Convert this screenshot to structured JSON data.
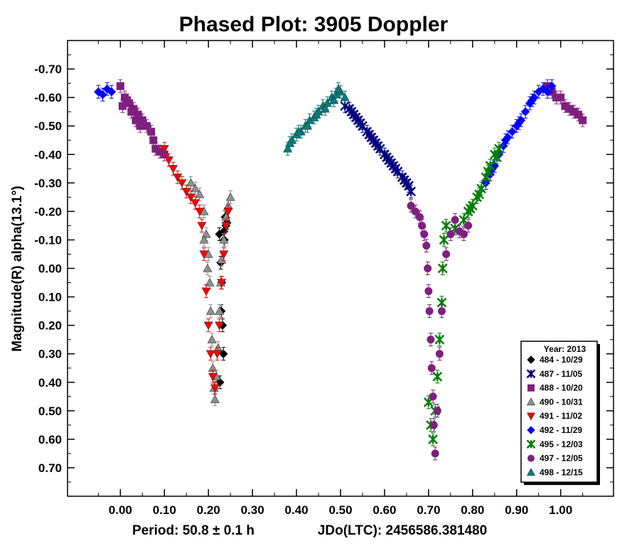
{
  "chart_data": {
    "type": "scatter",
    "title": "Phased Plot: 3905 Doppler",
    "xlabel": "Period: 50.8 ± 0.1 h",
    "xlabel2": "JDo(LTC): 2456586.381480",
    "ylabel": "Magnitude(R) alpha(13.1°)",
    "xlim": [
      -0.12,
      1.12
    ],
    "ylim": [
      0.8,
      -0.8
    ],
    "y_inverted": true,
    "x_ticks": [
      "0.00",
      "0.10",
      "0.20",
      "0.30",
      "0.40",
      "0.50",
      "0.60",
      "0.70",
      "0.80",
      "0.90",
      "1.00"
    ],
    "y_ticks": [
      "-0.70",
      "-0.60",
      "-0.50",
      "-0.40",
      "-0.30",
      "-0.20",
      "-0.10",
      "0.00",
      "0.10",
      "0.20",
      "0.30",
      "0.40",
      "0.50",
      "0.60",
      "0.70"
    ],
    "grid": false,
    "legend_placement": "bottom-right",
    "legend_title": "Year: 2013",
    "series": [
      {
        "name": "484 - 10/29",
        "color": "#000000",
        "marker": "diamond",
        "points": [
          [
            0.225,
            -0.12
          ],
          [
            0.228,
            -0.02
          ],
          [
            0.23,
            0.05
          ],
          [
            0.232,
            0.2
          ],
          [
            0.234,
            0.3
          ],
          [
            0.226,
            0.4
          ],
          [
            0.236,
            -0.1
          ],
          [
            0.238,
            -0.18
          ],
          [
            0.24,
            -0.15
          ],
          [
            0.242,
            -0.16
          ],
          [
            0.235,
            -0.13
          ],
          [
            0.229,
            0.15
          ]
        ]
      },
      {
        "name": "487 - 11/05",
        "color": "#00007f",
        "marker": "asterisk",
        "points": [
          [
            0.51,
            -0.57
          ],
          [
            0.52,
            -0.56
          ],
          [
            0.53,
            -0.54
          ],
          [
            0.54,
            -0.52
          ],
          [
            0.55,
            -0.5
          ],
          [
            0.56,
            -0.48
          ],
          [
            0.57,
            -0.46
          ],
          [
            0.58,
            -0.44
          ],
          [
            0.59,
            -0.42
          ],
          [
            0.6,
            -0.4
          ],
          [
            0.61,
            -0.38
          ],
          [
            0.62,
            -0.36
          ],
          [
            0.63,
            -0.34
          ],
          [
            0.64,
            -0.32
          ],
          [
            0.65,
            -0.3
          ],
          [
            0.66,
            -0.27
          ],
          [
            0.525,
            -0.55
          ],
          [
            0.545,
            -0.51
          ],
          [
            0.565,
            -0.47
          ],
          [
            0.585,
            -0.43
          ],
          [
            0.605,
            -0.39
          ],
          [
            0.625,
            -0.35
          ],
          [
            0.645,
            -0.31
          ],
          [
            0.535,
            -0.53
          ],
          [
            0.575,
            -0.45
          ],
          [
            0.615,
            -0.37
          ],
          [
            0.655,
            -0.29
          ]
        ]
      },
      {
        "name": "488 - 10/20",
        "color": "#7f1f7f",
        "marker": "square",
        "points": [
          [
            0.0,
            -0.64
          ],
          [
            0.01,
            -0.6
          ],
          [
            0.02,
            -0.58
          ],
          [
            0.03,
            -0.56
          ],
          [
            0.04,
            -0.54
          ],
          [
            0.05,
            -0.52
          ],
          [
            0.06,
            -0.5
          ],
          [
            0.07,
            -0.48
          ],
          [
            0.075,
            -0.45
          ],
          [
            0.08,
            -0.42
          ],
          [
            0.09,
            -0.41
          ],
          [
            0.1,
            -0.4
          ],
          [
            0.97,
            -0.64
          ],
          [
            0.98,
            -0.62
          ],
          [
            0.99,
            -0.6
          ],
          [
            1.0,
            -0.6
          ],
          [
            1.01,
            -0.57
          ],
          [
            1.02,
            -0.56
          ],
          [
            1.03,
            -0.55
          ],
          [
            1.04,
            -0.54
          ],
          [
            1.05,
            -0.52
          ],
          [
            0.005,
            -0.57
          ],
          [
            0.015,
            -0.59
          ],
          [
            0.025,
            -0.55
          ],
          [
            0.035,
            -0.52
          ],
          [
            0.045,
            -0.5
          ]
        ]
      },
      {
        "name": "490 - 10/31",
        "color": "#8f8f8f",
        "marker": "triangle",
        "points": [
          [
            0.16,
            -0.3
          ],
          [
            0.17,
            -0.28
          ],
          [
            0.18,
            -0.26
          ],
          [
            0.19,
            -0.2
          ],
          [
            0.195,
            -0.12
          ],
          [
            0.2,
            -0.05
          ],
          [
            0.203,
            0.05
          ],
          [
            0.205,
            0.15
          ],
          [
            0.208,
            0.25
          ],
          [
            0.21,
            0.35
          ],
          [
            0.213,
            0.42
          ],
          [
            0.215,
            0.46
          ],
          [
            0.218,
            0.38
          ],
          [
            0.222,
            0.28
          ],
          [
            0.225,
            0.15
          ],
          [
            0.228,
            0.05
          ],
          [
            0.23,
            -0.03
          ],
          [
            0.235,
            -0.1
          ],
          [
            0.24,
            -0.18
          ],
          [
            0.245,
            -0.22
          ],
          [
            0.25,
            -0.25
          ],
          [
            0.19,
            -0.1
          ],
          [
            0.198,
            0.0
          ]
        ]
      },
      {
        "name": "491 - 11/02",
        "color": "#ff0000",
        "marker": "triangle-down",
        "points": [
          [
            0.1,
            -0.42
          ],
          [
            0.11,
            -0.38
          ],
          [
            0.12,
            -0.35
          ],
          [
            0.13,
            -0.32
          ],
          [
            0.14,
            -0.3
          ],
          [
            0.15,
            -0.27
          ],
          [
            0.16,
            -0.25
          ],
          [
            0.17,
            -0.23
          ],
          [
            0.18,
            -0.2
          ],
          [
            0.185,
            -0.15
          ],
          [
            0.19,
            -0.05
          ],
          [
            0.195,
            0.08
          ],
          [
            0.2,
            0.2
          ],
          [
            0.205,
            0.3
          ],
          [
            0.21,
            0.38
          ],
          [
            0.215,
            0.42
          ],
          [
            0.22,
            0.3
          ],
          [
            0.225,
            0.2
          ],
          [
            0.23,
            0.05
          ],
          [
            0.235,
            -0.05
          ],
          [
            0.24,
            -0.15
          ],
          [
            0.245,
            -0.2
          ]
        ]
      },
      {
        "name": "492 - 11/29",
        "color": "#0000ff",
        "marker": "diamond",
        "points": [
          [
            -0.05,
            -0.62
          ],
          [
            -0.04,
            -0.61
          ],
          [
            -0.03,
            -0.63
          ],
          [
            -0.02,
            -0.62
          ],
          [
            0.83,
            -0.3
          ],
          [
            0.84,
            -0.33
          ],
          [
            0.85,
            -0.36
          ],
          [
            0.86,
            -0.4
          ],
          [
            0.87,
            -0.43
          ],
          [
            0.88,
            -0.46
          ],
          [
            0.89,
            -0.48
          ],
          [
            0.9,
            -0.5
          ],
          [
            0.91,
            -0.52
          ],
          [
            0.92,
            -0.55
          ],
          [
            0.93,
            -0.58
          ],
          [
            0.94,
            -0.6
          ],
          [
            0.95,
            -0.62
          ],
          [
            0.96,
            -0.63
          ],
          [
            0.97,
            -0.62
          ],
          [
            0.98,
            -0.64
          ],
          [
            0.845,
            -0.35
          ],
          [
            0.875,
            -0.45
          ],
          [
            0.905,
            -0.51
          ],
          [
            0.935,
            -0.59
          ]
        ]
      },
      {
        "name": "495 - 12/03",
        "color": "#007f00",
        "marker": "asterisk",
        "points": [
          [
            0.7,
            0.47
          ],
          [
            0.705,
            0.55
          ],
          [
            0.71,
            0.6
          ],
          [
            0.715,
            0.5
          ],
          [
            0.72,
            0.38
          ],
          [
            0.725,
            0.25
          ],
          [
            0.73,
            0.12
          ],
          [
            0.732,
            0.0
          ],
          [
            0.735,
            -0.1
          ],
          [
            0.74,
            -0.15
          ],
          [
            0.76,
            -0.14
          ],
          [
            0.78,
            -0.17
          ],
          [
            0.79,
            -0.2
          ],
          [
            0.8,
            -0.22
          ],
          [
            0.81,
            -0.25
          ],
          [
            0.82,
            -0.28
          ],
          [
            0.83,
            -0.32
          ],
          [
            0.84,
            -0.36
          ],
          [
            0.85,
            -0.4
          ],
          [
            0.86,
            -0.42
          ],
          [
            0.795,
            -0.21
          ],
          [
            0.815,
            -0.26
          ],
          [
            0.835,
            -0.34
          ],
          [
            0.855,
            -0.39
          ]
        ]
      },
      {
        "name": "497 - 12/05",
        "color": "#7f1f7f",
        "marker": "circle",
        "points": [
          [
            0.66,
            -0.22
          ],
          [
            0.67,
            -0.2
          ],
          [
            0.68,
            -0.18
          ],
          [
            0.685,
            -0.15
          ],
          [
            0.69,
            -0.12
          ],
          [
            0.695,
            -0.08
          ],
          [
            0.698,
            0.0
          ],
          [
            0.7,
            0.08
          ],
          [
            0.702,
            0.15
          ],
          [
            0.705,
            0.25
          ],
          [
            0.707,
            0.35
          ],
          [
            0.71,
            0.45
          ],
          [
            0.712,
            0.55
          ],
          [
            0.715,
            0.65
          ],
          [
            0.72,
            0.5
          ],
          [
            0.725,
            0.3
          ],
          [
            0.73,
            0.15
          ],
          [
            0.74,
            -0.05
          ],
          [
            0.75,
            -0.12
          ],
          [
            0.76,
            -0.17
          ],
          [
            0.77,
            -0.13
          ],
          [
            0.78,
            -0.12
          ],
          [
            0.79,
            -0.15
          ]
        ]
      },
      {
        "name": "498 - 12/15",
        "color": "#007f7f",
        "marker": "triangle",
        "points": [
          [
            0.38,
            -0.42
          ],
          [
            0.39,
            -0.45
          ],
          [
            0.4,
            -0.47
          ],
          [
            0.41,
            -0.48
          ],
          [
            0.42,
            -0.5
          ],
          [
            0.43,
            -0.52
          ],
          [
            0.44,
            -0.53
          ],
          [
            0.45,
            -0.55
          ],
          [
            0.46,
            -0.57
          ],
          [
            0.47,
            -0.58
          ],
          [
            0.48,
            -0.6
          ],
          [
            0.49,
            -0.61
          ],
          [
            0.5,
            -0.62
          ],
          [
            0.51,
            -0.6
          ],
          [
            0.385,
            -0.44
          ],
          [
            0.405,
            -0.48
          ],
          [
            0.425,
            -0.5
          ],
          [
            0.445,
            -0.54
          ],
          [
            0.465,
            -0.56
          ],
          [
            0.485,
            -0.59
          ],
          [
            0.495,
            -0.63
          ]
        ]
      }
    ]
  }
}
